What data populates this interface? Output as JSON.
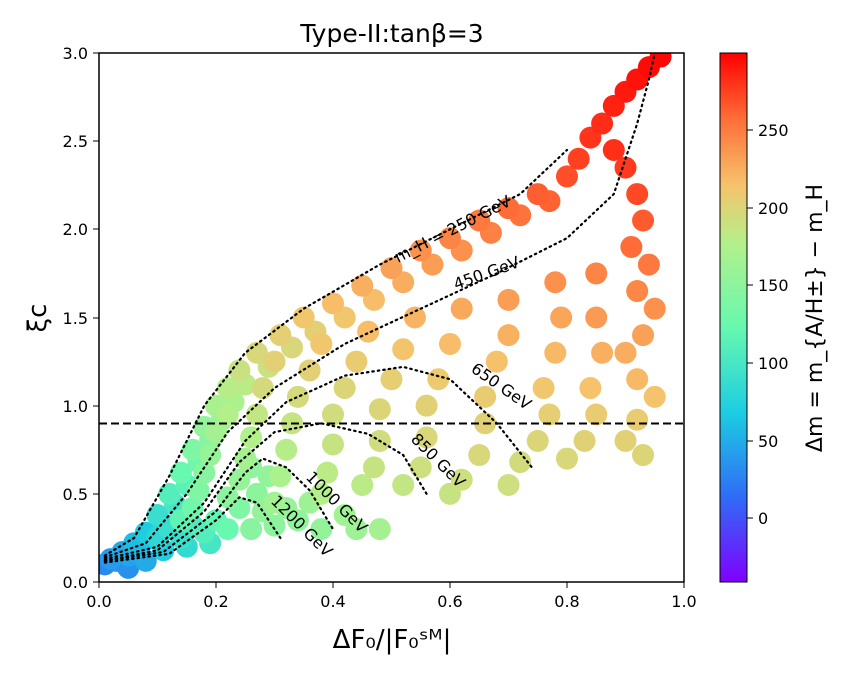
{
  "chart_data": {
    "type": "scatter",
    "title": "Type-II:tanβ=3",
    "xlabel": "ΔF₀/|F₀ˢᴹ|",
    "ylabel": "ξc",
    "xlim": [
      0.0,
      1.0
    ],
    "ylim": [
      0.0,
      3.0
    ],
    "x_ticks": [
      "0.0",
      "0.2",
      "0.4",
      "0.6",
      "0.8",
      "1.0"
    ],
    "y_ticks": [
      "0.0",
      "0.5",
      "1.0",
      "1.5",
      "2.0",
      "2.5",
      "3.0"
    ],
    "grid": false,
    "colorbar": {
      "label": "Δm = m_{A/H±} − m_H",
      "range": [
        -40,
        300
      ],
      "ticks": [
        "0",
        "50",
        "100",
        "150",
        "200",
        "250"
      ],
      "colormap": "rainbow"
    },
    "reference_line": {
      "y": 0.9,
      "style": "dashed"
    },
    "contours": [
      {
        "label": "m_H = 250 GeV",
        "points": [
          [
            0.01,
            0.15
          ],
          [
            0.06,
            0.25
          ],
          [
            0.12,
            0.6
          ],
          [
            0.18,
            1.0
          ],
          [
            0.25,
            1.3
          ],
          [
            0.35,
            1.55
          ],
          [
            0.48,
            1.8
          ],
          [
            0.6,
            2.0
          ],
          [
            0.72,
            2.2
          ],
          [
            0.8,
            2.45
          ]
        ]
      },
      {
        "label": "450 GeV",
        "points": [
          [
            0.01,
            0.14
          ],
          [
            0.08,
            0.22
          ],
          [
            0.15,
            0.5
          ],
          [
            0.22,
            0.85
          ],
          [
            0.3,
            1.1
          ],
          [
            0.42,
            1.35
          ],
          [
            0.55,
            1.55
          ],
          [
            0.68,
            1.75
          ],
          [
            0.8,
            1.95
          ],
          [
            0.88,
            2.2
          ],
          [
            0.92,
            2.6
          ],
          [
            0.94,
            2.85
          ],
          [
            0.95,
            3.0
          ]
        ]
      },
      {
        "label": "650 GeV",
        "points": [
          [
            0.01,
            0.13
          ],
          [
            0.1,
            0.2
          ],
          [
            0.18,
            0.45
          ],
          [
            0.25,
            0.8
          ],
          [
            0.32,
            1.02
          ],
          [
            0.42,
            1.17
          ],
          [
            0.52,
            1.22
          ],
          [
            0.6,
            1.15
          ],
          [
            0.68,
            0.9
          ],
          [
            0.74,
            0.65
          ]
        ]
      },
      {
        "label": "850 GeV",
        "points": [
          [
            0.01,
            0.12
          ],
          [
            0.1,
            0.18
          ],
          [
            0.18,
            0.4
          ],
          [
            0.24,
            0.68
          ],
          [
            0.3,
            0.85
          ],
          [
            0.38,
            0.9
          ],
          [
            0.46,
            0.84
          ],
          [
            0.52,
            0.72
          ],
          [
            0.56,
            0.5
          ]
        ]
      },
      {
        "label": "1000 GeV",
        "points": [
          [
            0.01,
            0.12
          ],
          [
            0.11,
            0.17
          ],
          [
            0.2,
            0.4
          ],
          [
            0.25,
            0.62
          ],
          [
            0.28,
            0.7
          ],
          [
            0.32,
            0.65
          ],
          [
            0.36,
            0.52
          ],
          [
            0.4,
            0.3
          ]
        ]
      },
      {
        "label": "1200 GeV",
        "points": [
          [
            0.01,
            0.11
          ],
          [
            0.12,
            0.16
          ],
          [
            0.2,
            0.35
          ],
          [
            0.24,
            0.48
          ],
          [
            0.27,
            0.45
          ],
          [
            0.29,
            0.35
          ],
          [
            0.31,
            0.25
          ]
        ]
      }
    ],
    "contour_labels": [
      "m_H = 250 GeV",
      "450 GeV",
      "650 GeV",
      "850 GeV",
      "1000 GeV",
      "1200 GeV"
    ],
    "series": [
      {
        "points": [
          [
            0.01,
            0.1,
            30
          ],
          [
            0.02,
            0.13,
            40
          ],
          [
            0.03,
            0.12,
            35
          ],
          [
            0.04,
            0.17,
            50
          ],
          [
            0.05,
            0.15,
            45
          ],
          [
            0.06,
            0.22,
            60
          ],
          [
            0.07,
            0.2,
            55
          ],
          [
            0.08,
            0.28,
            70
          ],
          [
            0.09,
            0.25,
            65
          ],
          [
            0.1,
            0.38,
            90
          ],
          [
            0.11,
            0.33,
            80
          ],
          [
            0.12,
            0.5,
            110
          ],
          [
            0.13,
            0.44,
            100
          ],
          [
            0.14,
            0.62,
            125
          ],
          [
            0.15,
            0.55,
            115
          ],
          [
            0.16,
            0.75,
            140
          ],
          [
            0.17,
            0.68,
            130
          ],
          [
            0.18,
            0.88,
            155
          ],
          [
            0.19,
            0.8,
            145
          ],
          [
            0.2,
            1.0,
            170
          ],
          [
            0.21,
            0.92,
            160
          ],
          [
            0.22,
            1.1,
            180
          ],
          [
            0.23,
            1.02,
            172
          ],
          [
            0.24,
            1.2,
            190
          ],
          [
            0.25,
            1.12,
            182
          ],
          [
            0.27,
            1.3,
            198
          ],
          [
            0.29,
            1.22,
            190
          ],
          [
            0.31,
            1.4,
            205
          ],
          [
            0.33,
            1.33,
            198
          ],
          [
            0.35,
            1.5,
            212
          ],
          [
            0.37,
            1.42,
            205
          ],
          [
            0.4,
            1.58,
            218
          ],
          [
            0.42,
            1.5,
            212
          ],
          [
            0.45,
            1.68,
            225
          ],
          [
            0.47,
            1.6,
            218
          ],
          [
            0.5,
            1.78,
            232
          ],
          [
            0.52,
            1.7,
            226
          ],
          [
            0.55,
            1.88,
            240
          ],
          [
            0.57,
            1.8,
            234
          ],
          [
            0.6,
            1.95,
            246
          ],
          [
            0.62,
            1.88,
            240
          ],
          [
            0.65,
            2.05,
            252
          ],
          [
            0.67,
            1.98,
            248
          ],
          [
            0.7,
            2.12,
            258
          ],
          [
            0.72,
            2.08,
            255
          ],
          [
            0.75,
            2.2,
            264
          ],
          [
            0.77,
            2.16,
            262
          ],
          [
            0.8,
            2.3,
            270
          ],
          [
            0.82,
            2.4,
            275
          ],
          [
            0.84,
            2.52,
            280
          ],
          [
            0.86,
            2.6,
            283
          ],
          [
            0.88,
            2.7,
            287
          ],
          [
            0.9,
            2.78,
            290
          ],
          [
            0.92,
            2.85,
            293
          ],
          [
            0.94,
            2.92,
            296
          ],
          [
            0.96,
            2.98,
            298
          ],
          [
            0.88,
            2.45,
            282
          ],
          [
            0.9,
            2.35,
            278
          ],
          [
            0.92,
            2.2,
            272
          ],
          [
            0.93,
            2.05,
            265
          ],
          [
            0.91,
            1.9,
            258
          ],
          [
            0.94,
            1.8,
            252
          ],
          [
            0.92,
            1.65,
            245
          ],
          [
            0.95,
            1.55,
            240
          ],
          [
            0.93,
            1.4,
            232
          ],
          [
            0.9,
            1.3,
            226
          ],
          [
            0.92,
            1.15,
            220
          ],
          [
            0.95,
            1.05,
            214
          ],
          [
            0.92,
            0.92,
            208
          ],
          [
            0.9,
            0.8,
            204
          ],
          [
            0.93,
            0.72,
            200
          ],
          [
            0.85,
            1.75,
            246
          ],
          [
            0.85,
            1.5,
            235
          ],
          [
            0.86,
            1.3,
            225
          ],
          [
            0.84,
            1.1,
            215
          ],
          [
            0.85,
            0.95,
            208
          ],
          [
            0.83,
            0.8,
            203
          ],
          [
            0.8,
            0.7,
            198
          ],
          [
            0.78,
            1.7,
            240
          ],
          [
            0.79,
            1.5,
            230
          ],
          [
            0.78,
            1.3,
            220
          ],
          [
            0.76,
            1.1,
            212
          ],
          [
            0.77,
            0.95,
            206
          ],
          [
            0.75,
            0.8,
            200
          ],
          [
            0.72,
            0.68,
            195
          ],
          [
            0.7,
            0.55,
            192
          ],
          [
            0.7,
            1.6,
            234
          ],
          [
            0.7,
            1.4,
            224
          ],
          [
            0.68,
            1.25,
            216
          ],
          [
            0.66,
            1.05,
            208
          ],
          [
            0.66,
            0.9,
            203
          ],
          [
            0.65,
            0.72,
            198
          ],
          [
            0.62,
            0.58,
            192
          ],
          [
            0.6,
            0.5,
            188
          ],
          [
            0.62,
            1.55,
            228
          ],
          [
            0.6,
            1.35,
            218
          ],
          [
            0.58,
            1.15,
            210
          ],
          [
            0.56,
            1.0,
            204
          ],
          [
            0.56,
            0.82,
            198
          ],
          [
            0.55,
            0.65,
            192
          ],
          [
            0.52,
            0.55,
            186
          ],
          [
            0.54,
            1.5,
            222
          ],
          [
            0.52,
            1.32,
            214
          ],
          [
            0.5,
            1.15,
            206
          ],
          [
            0.48,
            0.98,
            200
          ],
          [
            0.48,
            0.8,
            194
          ],
          [
            0.47,
            0.65,
            188
          ],
          [
            0.45,
            0.55,
            182
          ],
          [
            0.46,
            1.42,
            218
          ],
          [
            0.44,
            1.25,
            208
          ],
          [
            0.42,
            1.1,
            200
          ],
          [
            0.4,
            0.95,
            194
          ],
          [
            0.4,
            0.78,
            188
          ],
          [
            0.39,
            0.62,
            182
          ],
          [
            0.38,
            0.5,
            178
          ],
          [
            0.38,
            1.35,
            212
          ],
          [
            0.36,
            1.2,
            204
          ],
          [
            0.34,
            1.05,
            196
          ],
          [
            0.33,
            0.9,
            188
          ],
          [
            0.32,
            0.75,
            180
          ],
          [
            0.31,
            0.6,
            172
          ],
          [
            0.3,
            0.45,
            165
          ],
          [
            0.3,
            1.25,
            204
          ],
          [
            0.28,
            1.1,
            196
          ],
          [
            0.27,
            0.95,
            186
          ],
          [
            0.26,
            0.82,
            176
          ],
          [
            0.25,
            0.7,
            168
          ],
          [
            0.24,
            0.58,
            158
          ],
          [
            0.22,
            0.48,
            150
          ],
          [
            0.22,
            0.95,
            178
          ],
          [
            0.2,
            0.85,
            168
          ],
          [
            0.19,
            0.72,
            158
          ],
          [
            0.18,
            0.62,
            148
          ],
          [
            0.17,
            0.52,
            140
          ],
          [
            0.16,
            0.42,
            130
          ],
          [
            0.14,
            0.35,
            118
          ],
          [
            0.26,
            0.3,
            148
          ],
          [
            0.28,
            0.4,
            155
          ],
          [
            0.3,
            0.32,
            150
          ],
          [
            0.32,
            0.42,
            158
          ],
          [
            0.34,
            0.35,
            153
          ],
          [
            0.36,
            0.45,
            162
          ],
          [
            0.38,
            0.3,
            155
          ],
          [
            0.42,
            0.38,
            165
          ],
          [
            0.44,
            0.3,
            162
          ],
          [
            0.48,
            0.3,
            168
          ],
          [
            0.27,
            0.5,
            150
          ],
          [
            0.29,
            0.6,
            155
          ],
          [
            0.26,
            0.65,
            152
          ],
          [
            0.24,
            0.42,
            140
          ],
          [
            0.1,
            0.25,
            82
          ],
          [
            0.12,
            0.3,
            90
          ],
          [
            0.14,
            0.25,
            92
          ],
          [
            0.16,
            0.32,
            105
          ],
          [
            0.18,
            0.28,
            110
          ],
          [
            0.2,
            0.35,
            120
          ],
          [
            0.22,
            0.3,
            125
          ],
          [
            0.05,
            0.08,
            35
          ],
          [
            0.08,
            0.12,
            50
          ],
          [
            0.11,
            0.18,
            70
          ],
          [
            0.15,
            0.2,
            85
          ],
          [
            0.19,
            0.22,
            100
          ]
        ]
      }
    ]
  }
}
